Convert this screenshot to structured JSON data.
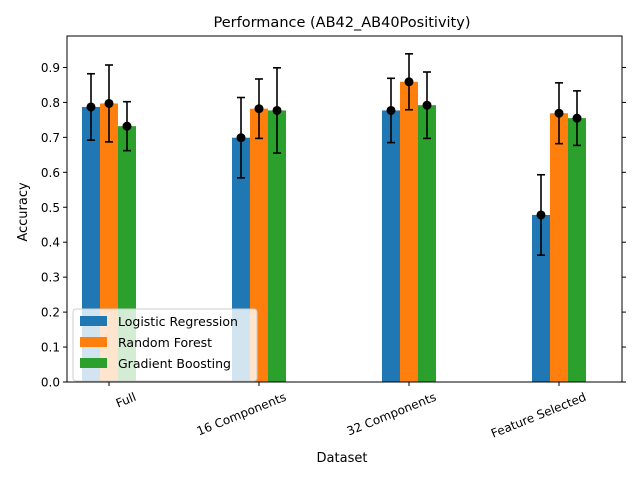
{
  "chart_data": {
    "type": "bar",
    "title": "Performance (AB42_AB40Positivity)",
    "xlabel": "Dataset",
    "ylabel": "Accuracy",
    "categories": [
      "Full",
      "16 Components",
      "32 Components",
      "Feature Selected"
    ],
    "ylim": [
      0,
      0.99
    ],
    "yticks": [
      "0.0",
      "0.1",
      "0.2",
      "0.3",
      "0.4",
      "0.5",
      "0.6",
      "0.7",
      "0.8",
      "0.9"
    ],
    "error_bars": true,
    "grid": false,
    "legend_position": "lower-left",
    "series": [
      {
        "name": "Logistic Regression",
        "color": "#1f77b4",
        "values": [
          0.787,
          0.699,
          0.777,
          0.478
        ],
        "errors": [
          0.095,
          0.115,
          0.092,
          0.115
        ]
      },
      {
        "name": "Random Forest",
        "color": "#ff7f0e",
        "values": [
          0.797,
          0.782,
          0.859,
          0.769
        ],
        "errors": [
          0.11,
          0.085,
          0.08,
          0.087
        ]
      },
      {
        "name": "Gradient Boosting",
        "color": "#2ca02c",
        "values": [
          0.732,
          0.777,
          0.792,
          0.755
        ],
        "errors": [
          0.07,
          0.122,
          0.095,
          0.078
        ]
      }
    ]
  }
}
